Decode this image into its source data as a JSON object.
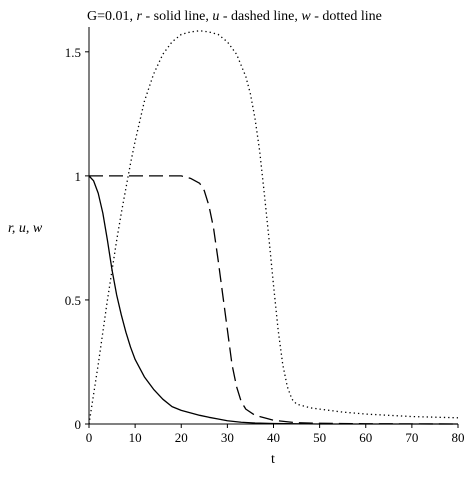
{
  "chart_data": {
    "type": "line",
    "title_parts": {
      "prefix": "G=0.01, ",
      "r_var": "r",
      "r_desc": " - solid line, ",
      "u_var": "u",
      "u_desc": " - dashed line, ",
      "w_var": "w",
      "w_desc": " - dotted line"
    },
    "xlabel": "t",
    "ylabel": "r, u, w",
    "xlim": [
      0,
      80
    ],
    "ylim": [
      0,
      1.6
    ],
    "xticks": [
      0,
      10,
      20,
      30,
      40,
      50,
      60,
      70,
      80
    ],
    "yticks": [
      0,
      0.5,
      1,
      1.5
    ],
    "xtick_labels": [
      "0",
      "10",
      "20",
      "30",
      "40",
      "50",
      "60",
      "70",
      "80"
    ],
    "ytick_labels": [
      "0",
      "0.5",
      "1",
      "1.5"
    ],
    "series": [
      {
        "key": "r",
        "style": "solid",
        "points": [
          [
            0,
            1.0
          ],
          [
            1,
            0.98
          ],
          [
            2,
            0.93
          ],
          [
            3,
            0.85
          ],
          [
            4,
            0.74
          ],
          [
            5,
            0.62
          ],
          [
            6,
            0.52
          ],
          [
            7,
            0.44
          ],
          [
            8,
            0.37
          ],
          [
            9,
            0.31
          ],
          [
            10,
            0.26
          ],
          [
            12,
            0.19
          ],
          [
            14,
            0.14
          ],
          [
            16,
            0.1
          ],
          [
            18,
            0.07
          ],
          [
            20,
            0.055
          ],
          [
            22,
            0.045
          ],
          [
            24,
            0.035
          ],
          [
            26,
            0.027
          ],
          [
            28,
            0.02
          ],
          [
            30,
            0.013
          ],
          [
            33,
            0.007
          ],
          [
            36,
            0.004
          ],
          [
            40,
            0.002
          ],
          [
            50,
            0.0
          ],
          [
            80,
            0.0
          ]
        ]
      },
      {
        "key": "u",
        "style": "dashed",
        "points": [
          [
            0,
            1.0
          ],
          [
            5,
            1.0
          ],
          [
            10,
            1.0
          ],
          [
            15,
            1.0
          ],
          [
            20,
            1.0
          ],
          [
            22,
            0.99
          ],
          [
            24,
            0.97
          ],
          [
            25,
            0.94
          ],
          [
            26,
            0.88
          ],
          [
            27,
            0.79
          ],
          [
            28,
            0.66
          ],
          [
            29,
            0.52
          ],
          [
            30,
            0.38
          ],
          [
            31,
            0.24
          ],
          [
            32,
            0.15
          ],
          [
            33,
            0.09
          ],
          [
            34,
            0.06
          ],
          [
            36,
            0.035
          ],
          [
            38,
            0.025
          ],
          [
            40,
            0.015
          ],
          [
            45,
            0.005
          ],
          [
            50,
            0.003
          ],
          [
            60,
            0.001
          ],
          [
            80,
            0.0
          ]
        ]
      },
      {
        "key": "w",
        "style": "dotted",
        "points": [
          [
            0,
            0.0
          ],
          [
            1,
            0.12
          ],
          [
            2,
            0.24
          ],
          [
            3,
            0.37
          ],
          [
            4,
            0.5
          ],
          [
            5,
            0.62
          ],
          [
            6,
            0.74
          ],
          [
            7,
            0.85
          ],
          [
            8,
            0.95
          ],
          [
            9,
            1.05
          ],
          [
            10,
            1.14
          ],
          [
            12,
            1.3
          ],
          [
            14,
            1.41
          ],
          [
            16,
            1.49
          ],
          [
            18,
            1.54
          ],
          [
            20,
            1.57
          ],
          [
            22,
            1.58
          ],
          [
            24,
            1.585
          ],
          [
            26,
            1.58
          ],
          [
            28,
            1.57
          ],
          [
            30,
            1.54
          ],
          [
            32,
            1.49
          ],
          [
            34,
            1.4
          ],
          [
            35,
            1.33
          ],
          [
            36,
            1.23
          ],
          [
            37,
            1.1
          ],
          [
            38,
            0.93
          ],
          [
            39,
            0.75
          ],
          [
            40,
            0.56
          ],
          [
            41,
            0.38
          ],
          [
            42,
            0.24
          ],
          [
            43,
            0.15
          ],
          [
            44,
            0.1
          ],
          [
            45,
            0.08
          ],
          [
            48,
            0.065
          ],
          [
            50,
            0.06
          ],
          [
            55,
            0.048
          ],
          [
            60,
            0.04
          ],
          [
            70,
            0.03
          ],
          [
            80,
            0.025
          ]
        ]
      }
    ],
    "grid": false,
    "legend": "none"
  }
}
